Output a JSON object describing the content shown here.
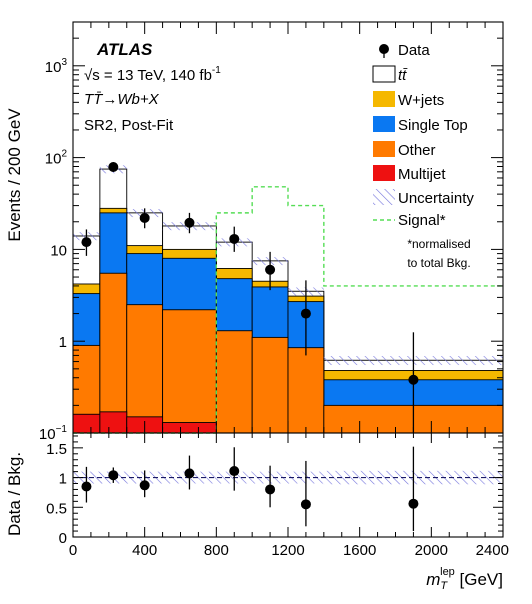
{
  "colors": {
    "ttbar": "#ffffff",
    "wjets": "#f5b800",
    "single_top": "#0a78f2",
    "other": "#ff7a00",
    "multijet": "#ee1111",
    "uncertainty": "#7777dd",
    "signal": "#55dd55",
    "data": "#000000",
    "ratio_line": "#1a1a66"
  },
  "chart_data": {
    "type": "bar",
    "experiment": "ATLAS",
    "energy_text": "√s = 13 TeV, 140 fb",
    "energy_superscript": "-1",
    "process_text": "TT̄→Wb+X",
    "region_text": "SR2, Post-Fit",
    "ylabel": "Events / 200 GeV",
    "ratio_ylabel": "Data / Bkg.",
    "xlabel_main": "m",
    "xlabel_sub": "T",
    "xlabel_sup": "lep",
    "xlabel_unit": " [GeV]",
    "xlim": [
      0,
      2400
    ],
    "ylim": [
      0.1,
      3000
    ],
    "ylog": true,
    "ratio_ylim": [
      0,
      1.75
    ],
    "x_ticks": [
      "0",
      "400",
      "800",
      "1200",
      "1600",
      "2000",
      "2400"
    ],
    "x_tick_values": [
      0,
      400,
      800,
      1200,
      1600,
      2000,
      2400
    ],
    "y_tick_labels": [
      {
        "base": "10",
        "exp": "−1",
        "value": 0.1
      },
      {
        "base": "1",
        "exp": "",
        "value": 1
      },
      {
        "base": "10",
        "exp": "",
        "value": 10
      },
      {
        "base": "10",
        "exp": "2",
        "value": 100
      },
      {
        "base": "10",
        "exp": "3",
        "value": 1000
      }
    ],
    "ratio_ticks": [
      "0",
      "0.5",
      "1",
      "1.5"
    ],
    "ratio_tick_values": [
      0,
      0.5,
      1,
      1.5
    ],
    "bin_edges": [
      0,
      150,
      300,
      500,
      800,
      1000,
      1200,
      1400,
      2400
    ],
    "series": [
      {
        "name": "Multijet",
        "key": "multijet",
        "values": [
          0.16,
          0.17,
          0.15,
          0.13,
          0,
          0,
          0,
          0
        ]
      },
      {
        "name": "Other",
        "key": "other",
        "values": [
          0.9,
          5.5,
          2.5,
          2.2,
          1.3,
          1.1,
          0.85,
          0.2
        ]
      },
      {
        "name": "Single Top",
        "key": "single_top",
        "values": [
          3.3,
          25,
          9,
          8,
          4.8,
          3.9,
          2.7,
          0.38
        ]
      },
      {
        "name": "W+jets",
        "key": "wjets",
        "values": [
          4.2,
          28,
          11,
          10,
          6.2,
          4.5,
          3.1,
          0.48
        ]
      },
      {
        "name": "tt̄",
        "key": "ttbar",
        "values": [
          14,
          75,
          25,
          18,
          12,
          7.5,
          3.5,
          0.62
        ]
      }
    ],
    "uncertainty_band": {
      "name": "Uncertainty",
      "low": [
        12.6,
        67.5,
        22.5,
        16.2,
        10.8,
        6.75,
        3.15,
        0.55
      ],
      "high": [
        15.4,
        82.5,
        27.5,
        19.8,
        13.2,
        8.25,
        3.85,
        0.69
      ]
    },
    "signal": {
      "name": "Signal*",
      "values": [
        0,
        0,
        0,
        0,
        25,
        48,
        30,
        4
      ],
      "note_line1": "*normalised",
      "note_line2": "to total Bkg."
    },
    "data": {
      "name": "Data",
      "x": [
        75,
        225,
        400,
        650,
        900,
        1100,
        1300,
        1900
      ],
      "y": [
        12,
        79,
        22,
        19.5,
        13,
        6,
        2,
        0.38
      ],
      "err_low": [
        3.5,
        9,
        5,
        4.5,
        3.6,
        2.4,
        1.3,
        0.31
      ],
      "err_high": [
        4.5,
        10,
        6,
        5.5,
        4.7,
        3.4,
        2.6,
        0.87
      ]
    },
    "ratio": {
      "x": [
        75,
        225,
        400,
        650,
        900,
        1100,
        1300,
        1900
      ],
      "y": [
        0.85,
        1.04,
        0.87,
        1.07,
        1.11,
        0.8,
        0.55,
        0.56
      ],
      "err_low": [
        0.27,
        0.13,
        0.2,
        0.27,
        0.33,
        0.3,
        0.37,
        0.46
      ],
      "err_high": [
        0.33,
        0.13,
        0.25,
        0.3,
        0.4,
        0.4,
        0.73,
        0.96
      ]
    }
  }
}
